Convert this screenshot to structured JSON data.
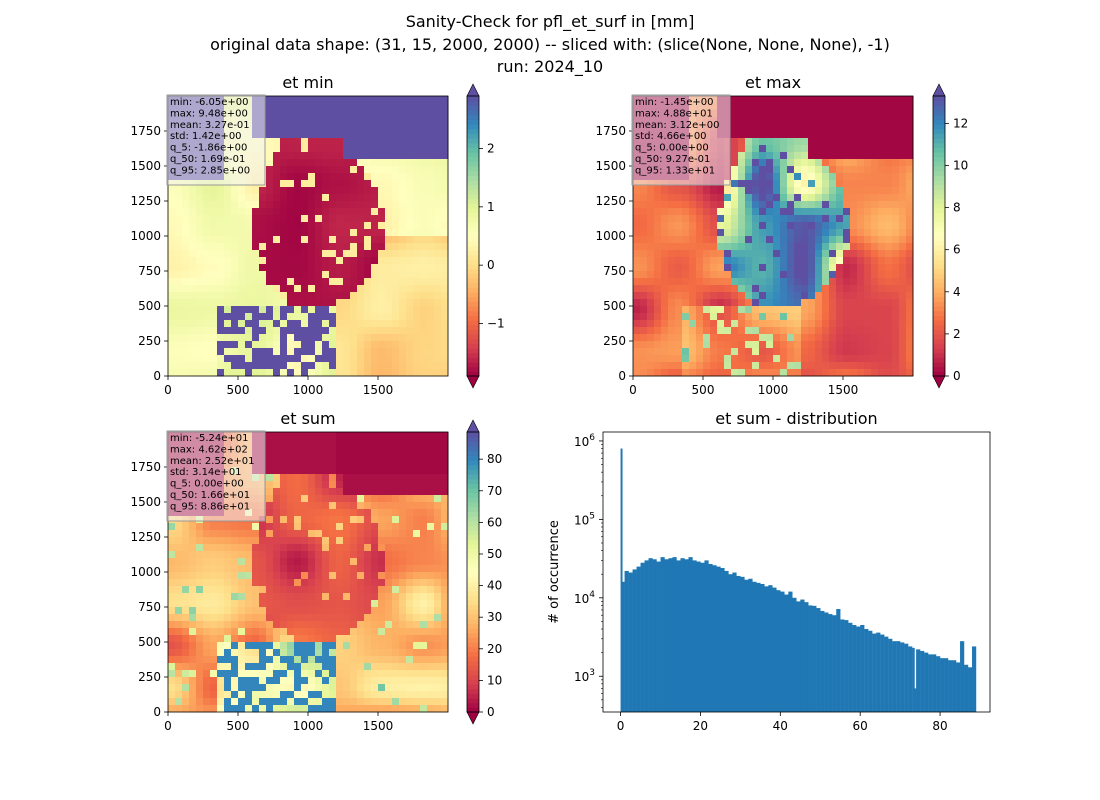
{
  "figure": {
    "title_line1": "Sanity-Check for pfl_et_surf in [mm]",
    "title_line2": "original data shape: (31, 15, 2000, 2000) -- sliced with: (slice(None, None, None), -1)",
    "title_line3": "run: 2024_10"
  },
  "chart_data": [
    {
      "type": "heatmap",
      "title": "et min",
      "colormap": "Spectral",
      "xlim": [
        0,
        2000
      ],
      "ylim": [
        0,
        2000
      ],
      "xticks": [
        0,
        500,
        1000,
        1500
      ],
      "yticks": [
        0,
        250,
        500,
        750,
        1000,
        1250,
        1500,
        1750
      ],
      "color_range": [
        -1.9,
        2.9
      ],
      "colorbar_ticks": [
        "−1",
        "0",
        "1",
        "2"
      ],
      "colorbar_tick_values": [
        -1,
        0,
        1,
        2
      ],
      "stats": [
        "min: -6.05e+00",
        "max: 9.48e+00",
        "mean: 3.27e-01",
        "std: 1.42e+00",
        "q_5: -1.86e+00",
        "q_50: 1.69e-01",
        "q_95: 2.85e+00"
      ]
    },
    {
      "type": "heatmap",
      "title": "et max",
      "colormap": "Spectral",
      "xlim": [
        0,
        2000
      ],
      "ylim": [
        0,
        2000
      ],
      "xticks": [
        0,
        500,
        1000,
        1500
      ],
      "yticks": [
        0,
        250,
        500,
        750,
        1000,
        1250,
        1500,
        1750
      ],
      "color_range": [
        0,
        13.3
      ],
      "colorbar_ticks": [
        "0",
        "2",
        "4",
        "6",
        "8",
        "10",
        "12"
      ],
      "colorbar_tick_values": [
        0,
        2,
        4,
        6,
        8,
        10,
        12
      ],
      "stats": [
        "min: -1.45e+00",
        "max: 4.88e+01",
        "mean: 3.12e+00",
        "std: 4.66e+00",
        "q_5: 0.00e+00",
        "q_50: 9.27e-01",
        "q_95: 1.33e+01"
      ]
    },
    {
      "type": "heatmap",
      "title": "et sum",
      "colormap": "Spectral",
      "xlim": [
        0,
        2000
      ],
      "ylim": [
        0,
        2000
      ],
      "xticks": [
        0,
        500,
        1000,
        1500
      ],
      "yticks": [
        0,
        250,
        500,
        750,
        1000,
        1250,
        1500,
        1750
      ],
      "color_range": [
        0,
        88.6
      ],
      "colorbar_ticks": [
        "0",
        "10",
        "20",
        "30",
        "40",
        "50",
        "60",
        "70",
        "80"
      ],
      "colorbar_tick_values": [
        0,
        10,
        20,
        30,
        40,
        50,
        60,
        70,
        80
      ],
      "stats": [
        "min: -5.24e+01",
        "max: 4.62e+02",
        "mean: 2.52e+01",
        "std: 3.14e+01",
        "q_5: 0.00e+00",
        "q_50: 1.66e+01",
        "q_95: 8.86e+01"
      ]
    },
    {
      "type": "bar",
      "title": "et sum - distribution",
      "ylabel": "# of occurrence",
      "xlabel": "",
      "yscale": "log",
      "color": "#1f77b4",
      "xlim": [
        -4.4,
        92.5
      ],
      "ylim": [
        350,
        1300000
      ],
      "xticks": [
        0,
        20,
        40,
        60,
        80
      ],
      "yticks_exp": [
        3,
        4,
        5,
        6
      ],
      "bin_width": 0.44,
      "x": [
        0,
        0.44,
        1,
        2,
        3,
        4,
        5,
        6,
        7,
        8,
        9,
        10,
        11,
        12,
        13,
        14,
        15,
        16,
        17,
        18,
        19,
        20,
        21,
        22,
        23,
        24,
        25,
        26,
        27,
        28,
        29,
        30,
        31,
        32,
        33,
        34,
        35,
        36,
        37,
        38,
        39,
        40,
        41,
        42,
        43,
        44,
        45,
        46,
        47,
        48,
        49,
        50,
        51,
        52,
        53,
        54,
        55,
        56,
        57,
        58,
        59,
        60,
        61,
        62,
        63,
        64,
        65,
        66,
        67,
        68,
        69,
        70,
        71,
        72,
        73,
        73.6,
        74,
        75,
        76,
        77,
        78,
        79,
        80,
        81,
        82,
        83,
        84,
        85,
        86,
        87,
        88
      ],
      "y": [
        800000,
        16000,
        22000,
        21000,
        23000,
        25000,
        28000,
        30000,
        32000,
        31000,
        29000,
        33000,
        31000,
        32000,
        33000,
        30000,
        32000,
        31000,
        33000,
        30000,
        29000,
        28000,
        30000,
        27000,
        26000,
        25000,
        24000,
        22000,
        20000,
        21000,
        19000,
        18500,
        17000,
        17500,
        16000,
        15500,
        15000,
        14000,
        14500,
        13500,
        12500,
        12000,
        11000,
        12000,
        10000,
        9000,
        9500,
        8800,
        8000,
        7900,
        7400,
        6800,
        6500,
        6200,
        6000,
        7200,
        5300,
        5200,
        4800,
        4500,
        4300,
        4500,
        4000,
        3800,
        3500,
        3600,
        3400,
        3200,
        3000,
        2800,
        2800,
        2700,
        2600,
        2400,
        2300,
        700,
        2200,
        2100,
        2000,
        1900,
        1900,
        1800,
        1700,
        1700,
        1600,
        1600,
        1500,
        2800,
        1400,
        1300,
        2400
      ]
    }
  ]
}
